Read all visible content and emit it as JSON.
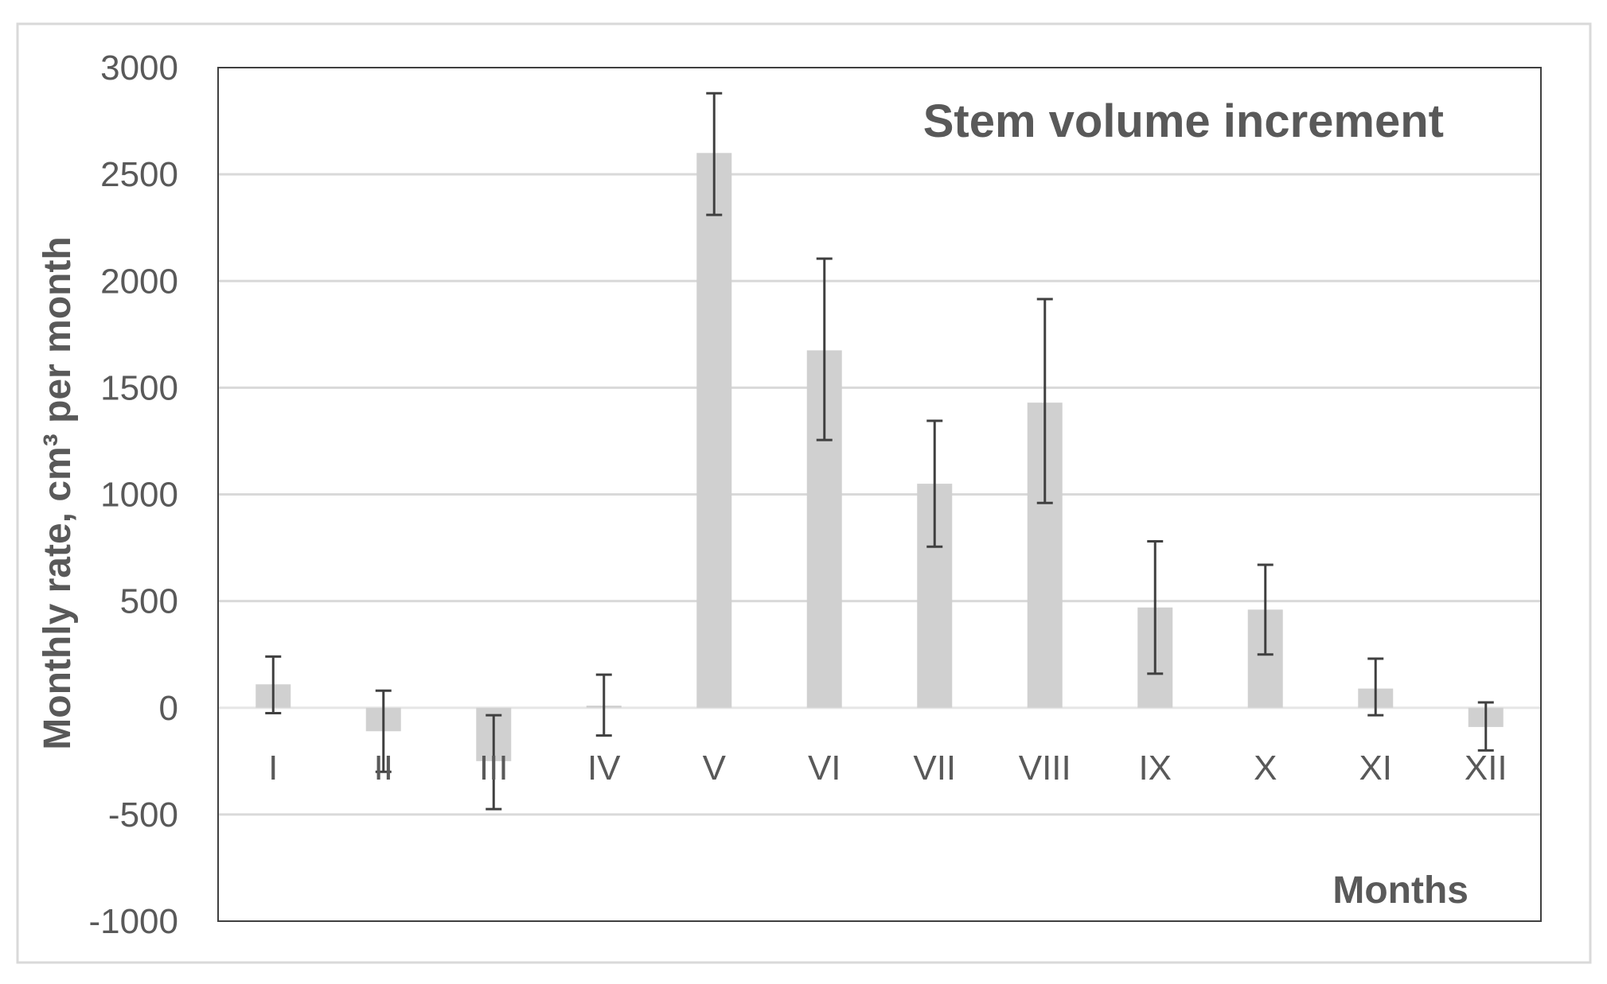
{
  "chart_data": {
    "type": "bar",
    "title": "Stem volume increment",
    "xlabel": "Months",
    "ylabel": "Monthly rate, cm³ per month",
    "ylim": [
      -1000,
      3000
    ],
    "yticks": [
      3000,
      2500,
      2000,
      1500,
      1000,
      500,
      0,
      -500,
      -1000
    ],
    "grid": true,
    "categories": [
      "I",
      "II",
      "III",
      "IV",
      "V",
      "VI",
      "VII",
      "VIII",
      "IX",
      "X",
      "XI",
      "XII"
    ],
    "values": [
      110,
      -110,
      -250,
      10,
      2600,
      1675,
      1050,
      1430,
      470,
      460,
      90,
      -90
    ],
    "error_upper": [
      240,
      80,
      -35,
      155,
      2880,
      2105,
      1345,
      1915,
      780,
      670,
      230,
      25
    ],
    "error_lower": [
      -25,
      -300,
      -475,
      -130,
      2310,
      1255,
      755,
      960,
      160,
      250,
      -35,
      -200
    ],
    "colors": {
      "bar": "#d0d0d0",
      "error": "#404040",
      "grid": "#d9d9d9",
      "text": "#595959"
    }
  }
}
